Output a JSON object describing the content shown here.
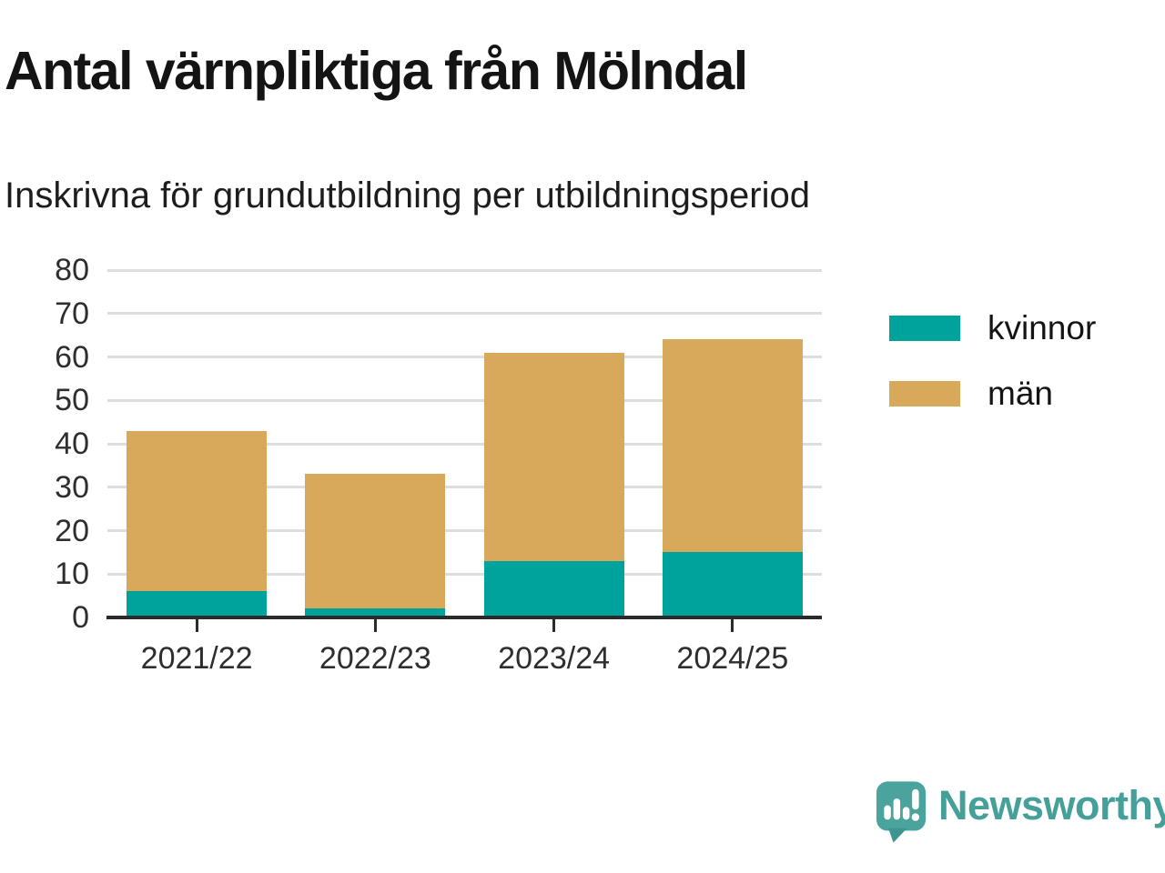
{
  "header": {
    "title": "Antal värnpliktiga från Mölndal",
    "subtitle": "Inskrivna för grundutbildning per utbildningsperiod"
  },
  "chart_data": {
    "type": "bar",
    "stacked": true,
    "title": "Antal värnpliktiga från Mölndal",
    "subtitle": "Inskrivna för grundutbildning per utbildningsperiod",
    "categories": [
      "2021/22",
      "2022/23",
      "2023/24",
      "2024/25"
    ],
    "series": [
      {
        "name": "kvinnor",
        "color": "#00A39B",
        "values": [
          6,
          2,
          13,
          15
        ]
      },
      {
        "name": "män",
        "color": "#D9A95B",
        "values": [
          37,
          31,
          48,
          49
        ]
      }
    ],
    "stack_totals": [
      43,
      33,
      61,
      64
    ],
    "xlabel": "",
    "ylabel": "",
    "ylim": [
      0,
      80
    ],
    "yticks": [
      0,
      10,
      20,
      30,
      40,
      50,
      60,
      70,
      80
    ],
    "grid": true,
    "legend_position": "right"
  },
  "colors": {
    "grid": "#dedede",
    "axis": "#2b2b2b",
    "tick_label": "#2e2e2e",
    "title": "#141414"
  },
  "branding": {
    "logo_text": "Newsworthy",
    "logo_icon": "bar-chart-speech-bubble-icon",
    "logo_color": "#46A09A",
    "logo_mark_color": "#4AA39C",
    "logo_mark_shade": "#3E948E"
  }
}
